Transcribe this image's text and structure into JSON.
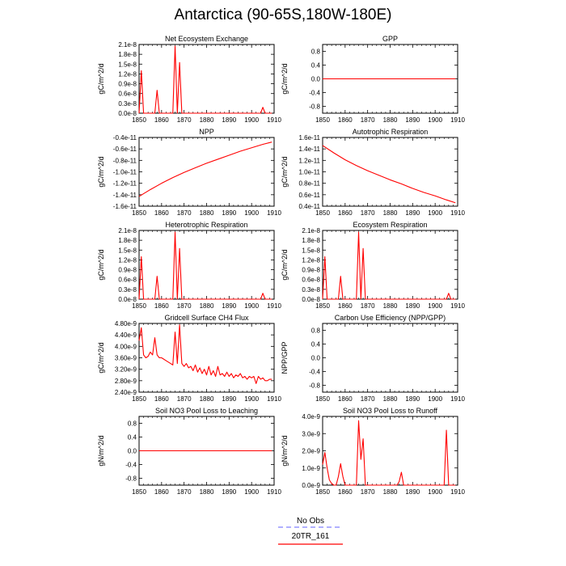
{
  "page": {
    "title": "Antarctica (90-65S,180W-180E)"
  },
  "legend": {
    "items": [
      {
        "label": "No Obs",
        "color": "#8080ff",
        "dash": true
      },
      {
        "label": "20TR_161",
        "color": "#ff0000",
        "dash": false
      }
    ]
  },
  "chart_data": [
    {
      "type": "line",
      "title": "Net Ecosystem Exchange",
      "ylabel": "gC/m^2/d",
      "xlim": [
        1850,
        1910
      ],
      "ylim": [
        0,
        2.1e-08
      ],
      "xticks": [
        1850,
        1860,
        1870,
        1880,
        1890,
        1900,
        1910
      ],
      "yticks": [
        0,
        3e-09,
        6e-09,
        9e-09,
        1.2e-08,
        1.5e-08,
        1.8e-08,
        2.1e-08
      ],
      "ytick_labels": [
        "0.0e-8",
        "0.3e-8",
        "0.6e-8",
        "0.9e-8",
        "1.2e-8",
        "1.5e-8",
        "1.8e-8",
        "2.1e-8"
      ],
      "series": [
        {
          "color": "#ff0000",
          "x": [
            1850,
            1851,
            1852,
            1853,
            1857,
            1858,
            1859,
            1865,
            1866,
            1867,
            1868,
            1869,
            1904,
            1905,
            1906,
            1909
          ],
          "y": [
            0,
            1.3e-08,
            0,
            0,
            0,
            7e-09,
            0,
            0,
            2.05e-08,
            0,
            1.55e-08,
            0,
            0,
            1.8e-09,
            0,
            0
          ]
        }
      ]
    },
    {
      "type": "line",
      "title": "GPP",
      "ylabel": "gC/m^2/d",
      "xlim": [
        1850,
        1910
      ],
      "ylim": [
        -1,
        1
      ],
      "xticks": [
        1850,
        1860,
        1870,
        1880,
        1890,
        1900,
        1910
      ],
      "yticks": [
        -0.8,
        -0.4,
        0,
        0.4,
        0.8
      ],
      "ytick_labels": [
        "-0.8",
        "-0.4",
        "0.0",
        "0.4",
        "0.8"
      ],
      "series": [
        {
          "color": "#ff0000",
          "x": [
            1850,
            1909
          ],
          "y": [
            0,
            0
          ]
        }
      ]
    },
    {
      "type": "line",
      "title": "NPP",
      "ylabel": "gC/m^2/d",
      "xlim": [
        1850,
        1910
      ],
      "ylim": [
        -1.6e-11,
        -4e-12
      ],
      "xticks": [
        1850,
        1860,
        1870,
        1880,
        1890,
        1900,
        1910
      ],
      "yticks": [
        -1.6e-11,
        -1.4e-11,
        -1.2e-11,
        -1e-11,
        -8e-12,
        -6e-12,
        -4e-12
      ],
      "ytick_labels": [
        "-1.6e-11",
        "-1.4e-11",
        "-1.2e-11",
        "-1.0e-11",
        "-0.8e-11",
        "-0.6e-11",
        "-0.4e-11"
      ],
      "series": [
        {
          "color": "#ff0000",
          "x": [
            1850,
            1855,
            1860,
            1865,
            1870,
            1875,
            1880,
            1885,
            1890,
            1895,
            1900,
            1905,
            1909
          ],
          "y": [
            -1.43e-11,
            -1.31e-11,
            -1.2e-11,
            -1.1e-11,
            -1.01e-11,
            -9.3e-12,
            -8.5e-12,
            -7.8e-12,
            -7.1e-12,
            -6.4e-12,
            -5.8e-12,
            -5.2e-12,
            -4.8e-12
          ]
        }
      ]
    },
    {
      "type": "line",
      "title": "Autotrophic Respiration",
      "ylabel": "gC/m^2/d",
      "xlim": [
        1850,
        1910
      ],
      "ylim": [
        4e-12,
        1.6e-11
      ],
      "xticks": [
        1850,
        1860,
        1870,
        1880,
        1890,
        1900,
        1910
      ],
      "yticks": [
        4e-12,
        6e-12,
        8e-12,
        1e-11,
        1.2e-11,
        1.4e-11,
        1.6e-11
      ],
      "ytick_labels": [
        "0.4e-11",
        "0.6e-11",
        "0.8e-11",
        "1.0e-11",
        "1.2e-11",
        "1.4e-11",
        "1.6e-11"
      ],
      "series": [
        {
          "color": "#ff0000",
          "x": [
            1850,
            1855,
            1860,
            1865,
            1870,
            1875,
            1880,
            1885,
            1890,
            1895,
            1900,
            1905,
            1909
          ],
          "y": [
            1.46e-11,
            1.33e-11,
            1.21e-11,
            1.11e-11,
            1.02e-11,
            9.4e-12,
            8.6e-12,
            7.9e-12,
            7.1e-12,
            6.4e-12,
            5.8e-12,
            5.1e-12,
            4.6e-12
          ]
        }
      ]
    },
    {
      "type": "line",
      "title": "Heterotrophic Respiration",
      "ylabel": "gC/m^2/d",
      "xlim": [
        1850,
        1910
      ],
      "ylim": [
        0,
        2.1e-08
      ],
      "xticks": [
        1850,
        1860,
        1870,
        1880,
        1890,
        1900,
        1910
      ],
      "yticks": [
        0,
        3e-09,
        6e-09,
        9e-09,
        1.2e-08,
        1.5e-08,
        1.8e-08,
        2.1e-08
      ],
      "ytick_labels": [
        "0.0e-8",
        "0.3e-8",
        "0.6e-8",
        "0.9e-8",
        "1.2e-8",
        "1.5e-8",
        "1.8e-8",
        "2.1e-8"
      ],
      "series": [
        {
          "color": "#ff0000",
          "x": [
            1850,
            1851,
            1852,
            1857,
            1858,
            1859,
            1865,
            1866,
            1867,
            1868,
            1869,
            1904,
            1905,
            1906,
            1909
          ],
          "y": [
            0,
            1.3e-08,
            0,
            0,
            7e-09,
            0,
            0,
            2.05e-08,
            0,
            1.55e-08,
            0,
            0,
            1.8e-09,
            0,
            0
          ]
        }
      ]
    },
    {
      "type": "line",
      "title": "Ecosystem Respiration",
      "ylabel": "gC/m^2/d",
      "xlim": [
        1850,
        1910
      ],
      "ylim": [
        0,
        2.1e-08
      ],
      "xticks": [
        1850,
        1860,
        1870,
        1880,
        1890,
        1900,
        1910
      ],
      "yticks": [
        0,
        3e-09,
        6e-09,
        9e-09,
        1.2e-08,
        1.5e-08,
        1.8e-08,
        2.1e-08
      ],
      "ytick_labels": [
        "0.0e-8",
        "0.3e-8",
        "0.6e-8",
        "0.9e-8",
        "1.2e-8",
        "1.5e-8",
        "1.8e-8",
        "2.1e-8"
      ],
      "series": [
        {
          "color": "#ff0000",
          "x": [
            1850,
            1851,
            1852,
            1857,
            1858,
            1859,
            1865,
            1866,
            1867,
            1868,
            1869,
            1905,
            1906,
            1907,
            1909
          ],
          "y": [
            0,
            1.3e-08,
            0,
            0,
            7e-09,
            0,
            0,
            2.05e-08,
            0,
            1.55e-08,
            0,
            0,
            1.8e-09,
            0,
            0
          ]
        }
      ]
    },
    {
      "type": "line",
      "title": "Gridcell Surface CH4 Flux",
      "ylabel": "gC/m^2/d",
      "xlim": [
        1850,
        1910
      ],
      "ylim": [
        2.4e-09,
        4.8e-09
      ],
      "xticks": [
        1850,
        1860,
        1870,
        1880,
        1890,
        1900,
        1910
      ],
      "yticks": [
        2.4e-09,
        2.8e-09,
        3.2e-09,
        3.6e-09,
        4e-09,
        4.4e-09,
        4.8e-09
      ],
      "ytick_labels": [
        "2.40e-9",
        "2.80e-9",
        "3.20e-9",
        "3.60e-9",
        "4.00e-9",
        "4.40e-9",
        "4.80e-9"
      ],
      "series": [
        {
          "color": "#ff0000",
          "x": [
            1850,
            1851,
            1852,
            1853,
            1854,
            1855,
            1856,
            1857,
            1858,
            1859,
            1860,
            1861,
            1862,
            1863,
            1864,
            1865,
            1866,
            1867,
            1868,
            1869,
            1870,
            1871,
            1872,
            1873,
            1874,
            1875,
            1876,
            1877,
            1878,
            1879,
            1880,
            1881,
            1882,
            1883,
            1884,
            1885,
            1886,
            1887,
            1888,
            1889,
            1890,
            1891,
            1892,
            1893,
            1894,
            1895,
            1896,
            1897,
            1898,
            1899,
            1900,
            1901,
            1902,
            1903,
            1904,
            1905,
            1906,
            1907,
            1908,
            1909
          ],
          "y": [
            4.2e-09,
            4.65e-09,
            3.7e-09,
            3.6e-09,
            3.65e-09,
            3.8e-09,
            3.7e-09,
            4.3e-09,
            3.7e-09,
            3.6e-09,
            3.6e-09,
            3.55e-09,
            3.5e-09,
            3.45e-09,
            3.4e-09,
            3.35e-09,
            4.5e-09,
            3.4e-09,
            4.75e-09,
            3.4e-09,
            3.3e-09,
            3.4e-09,
            3.25e-09,
            3.3e-09,
            3.15e-09,
            3.35e-09,
            3.1e-09,
            3.25e-09,
            3.05e-09,
            3.2e-09,
            3e-09,
            3.3e-09,
            3e-09,
            3.15e-09,
            2.95e-09,
            3.3e-09,
            3e-09,
            3.05e-09,
            2.95e-09,
            3.1e-09,
            2.95e-09,
            3.05e-09,
            2.9e-09,
            3e-09,
            2.95e-09,
            3.05e-09,
            2.9e-09,
            2.95e-09,
            2.85e-09,
            2.95e-09,
            2.9e-09,
            2.95e-09,
            2.7e-09,
            2.95e-09,
            2.85e-09,
            2.9e-09,
            2.8e-09,
            2.8e-09,
            2.85e-09,
            2.85e-09
          ]
        }
      ]
    },
    {
      "type": "line",
      "title": "Carbon Use Efficiency (NPP/GPP)",
      "ylabel": "NPP/GPP",
      "xlim": [
        1850,
        1910
      ],
      "ylim": [
        -1,
        1
      ],
      "xticks": [
        1850,
        1860,
        1870,
        1880,
        1890,
        1900,
        1910
      ],
      "yticks": [
        -0.8,
        -0.4,
        0,
        0.4,
        0.8
      ],
      "ytick_labels": [
        "-0.8",
        "-0.4",
        "0.0",
        "0.4",
        "0.8"
      ],
      "series": []
    },
    {
      "type": "line",
      "title": "Soil NO3 Pool Loss to Leaching",
      "ylabel": "gN/m^2/d",
      "xlim": [
        1850,
        1910
      ],
      "ylim": [
        -1,
        1
      ],
      "xticks": [
        1850,
        1860,
        1870,
        1880,
        1890,
        1900,
        1910
      ],
      "yticks": [
        -0.8,
        -0.4,
        0,
        0.4,
        0.8
      ],
      "ytick_labels": [
        "-0.8",
        "-0.4",
        "0.0",
        "0.4",
        "0.8"
      ],
      "series": [
        {
          "color": "#ff0000",
          "x": [
            1850,
            1909
          ],
          "y": [
            0,
            0
          ]
        }
      ]
    },
    {
      "type": "line",
      "title": "Soil NO3 Pool Loss to Runoff",
      "ylabel": "gN/m^2/d",
      "xlim": [
        1850,
        1910
      ],
      "ylim": [
        0,
        4e-09
      ],
      "xticks": [
        1850,
        1860,
        1870,
        1880,
        1890,
        1900,
        1910
      ],
      "yticks": [
        0,
        1e-09,
        2e-09,
        3e-09,
        4e-09
      ],
      "ytick_labels": [
        "0.0e-9",
        "1.0e-9",
        "2.0e-9",
        "3.0e-9",
        "4.0e-9"
      ],
      "series": [
        {
          "color": "#ff0000",
          "x": [
            1850,
            1851,
            1852,
            1853,
            1854,
            1855,
            1856,
            1857,
            1858,
            1859,
            1860,
            1865,
            1866,
            1867,
            1868,
            1869,
            1883,
            1884,
            1885,
            1886,
            1904,
            1905,
            1906,
            1909
          ],
          "y": [
            1.2e-09,
            1.9e-09,
            1e-09,
            3e-10,
            1e-10,
            0,
            0,
            5e-10,
            1.25e-09,
            5e-10,
            0,
            0,
            3.75e-09,
            1.5e-09,
            2.7e-09,
            0,
            0,
            2e-10,
            7.5e-10,
            0,
            0,
            3.2e-09,
            0,
            0
          ]
        }
      ]
    }
  ]
}
